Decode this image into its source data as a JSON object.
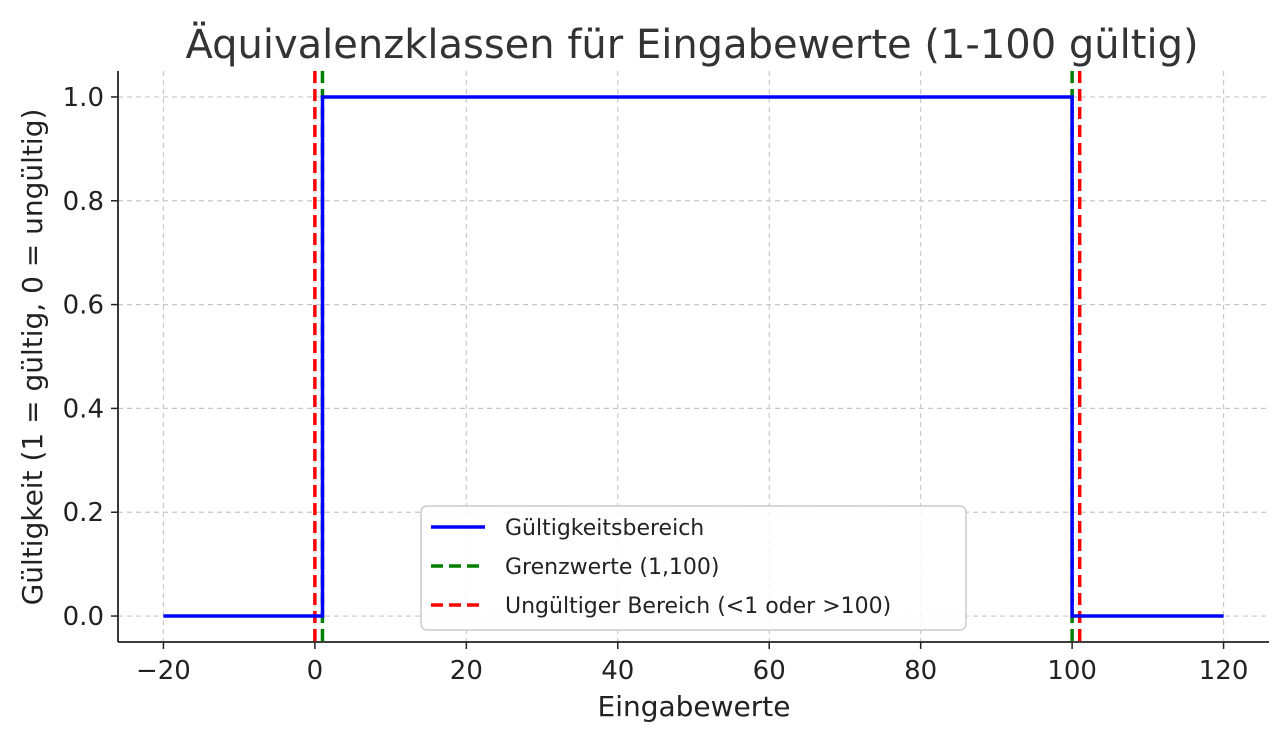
{
  "chart_data": {
    "type": "line",
    "title": "Äquivalenzklassen für Eingabewerte (1-100 gültig)",
    "xlabel": "Eingabewerte",
    "ylabel": "Gültigkeit (1 = gültig, 0 = ungültig)",
    "xlim": [
      -26,
      126
    ],
    "ylim": [
      -0.05,
      1.05
    ],
    "x_ticks": [
      -20,
      0,
      20,
      40,
      60,
      80,
      100,
      120
    ],
    "x_tick_labels": [
      "−20",
      "0",
      "20",
      "40",
      "60",
      "80",
      "100",
      "120"
    ],
    "y_ticks": [
      0.0,
      0.2,
      0.4,
      0.6,
      0.8,
      1.0
    ],
    "y_tick_labels": [
      "0.0",
      "0.2",
      "0.4",
      "0.6",
      "0.8",
      "1.0"
    ],
    "grid": true,
    "legend_position": "lower-center",
    "series": [
      {
        "name": "Gültigkeitsbereich",
        "style": "solid",
        "color": "#0000ff",
        "x": [
          -20,
          0,
          1,
          1,
          100,
          100,
          101,
          120
        ],
        "y": [
          0,
          0,
          0,
          1,
          1,
          0,
          0,
          0
        ]
      }
    ],
    "vlines": [
      {
        "legend": "Grenzwerte (1,100)",
        "style": "dashed",
        "color": "#008000",
        "x": [
          1,
          100
        ]
      },
      {
        "legend": "Ungültiger Bereich (<1 oder >100)",
        "style": "dashed",
        "color": "#ff0000",
        "x": [
          0,
          101
        ]
      }
    ],
    "legend": [
      {
        "label": "Gültigkeitsbereich",
        "color": "#0000ff",
        "style": "solid"
      },
      {
        "label": "Grenzwerte (1,100)",
        "color": "#008000",
        "style": "dashed"
      },
      {
        "label": "Ungültiger Bereich (<1 oder >100)",
        "color": "#ff0000",
        "style": "dashed"
      }
    ]
  }
}
